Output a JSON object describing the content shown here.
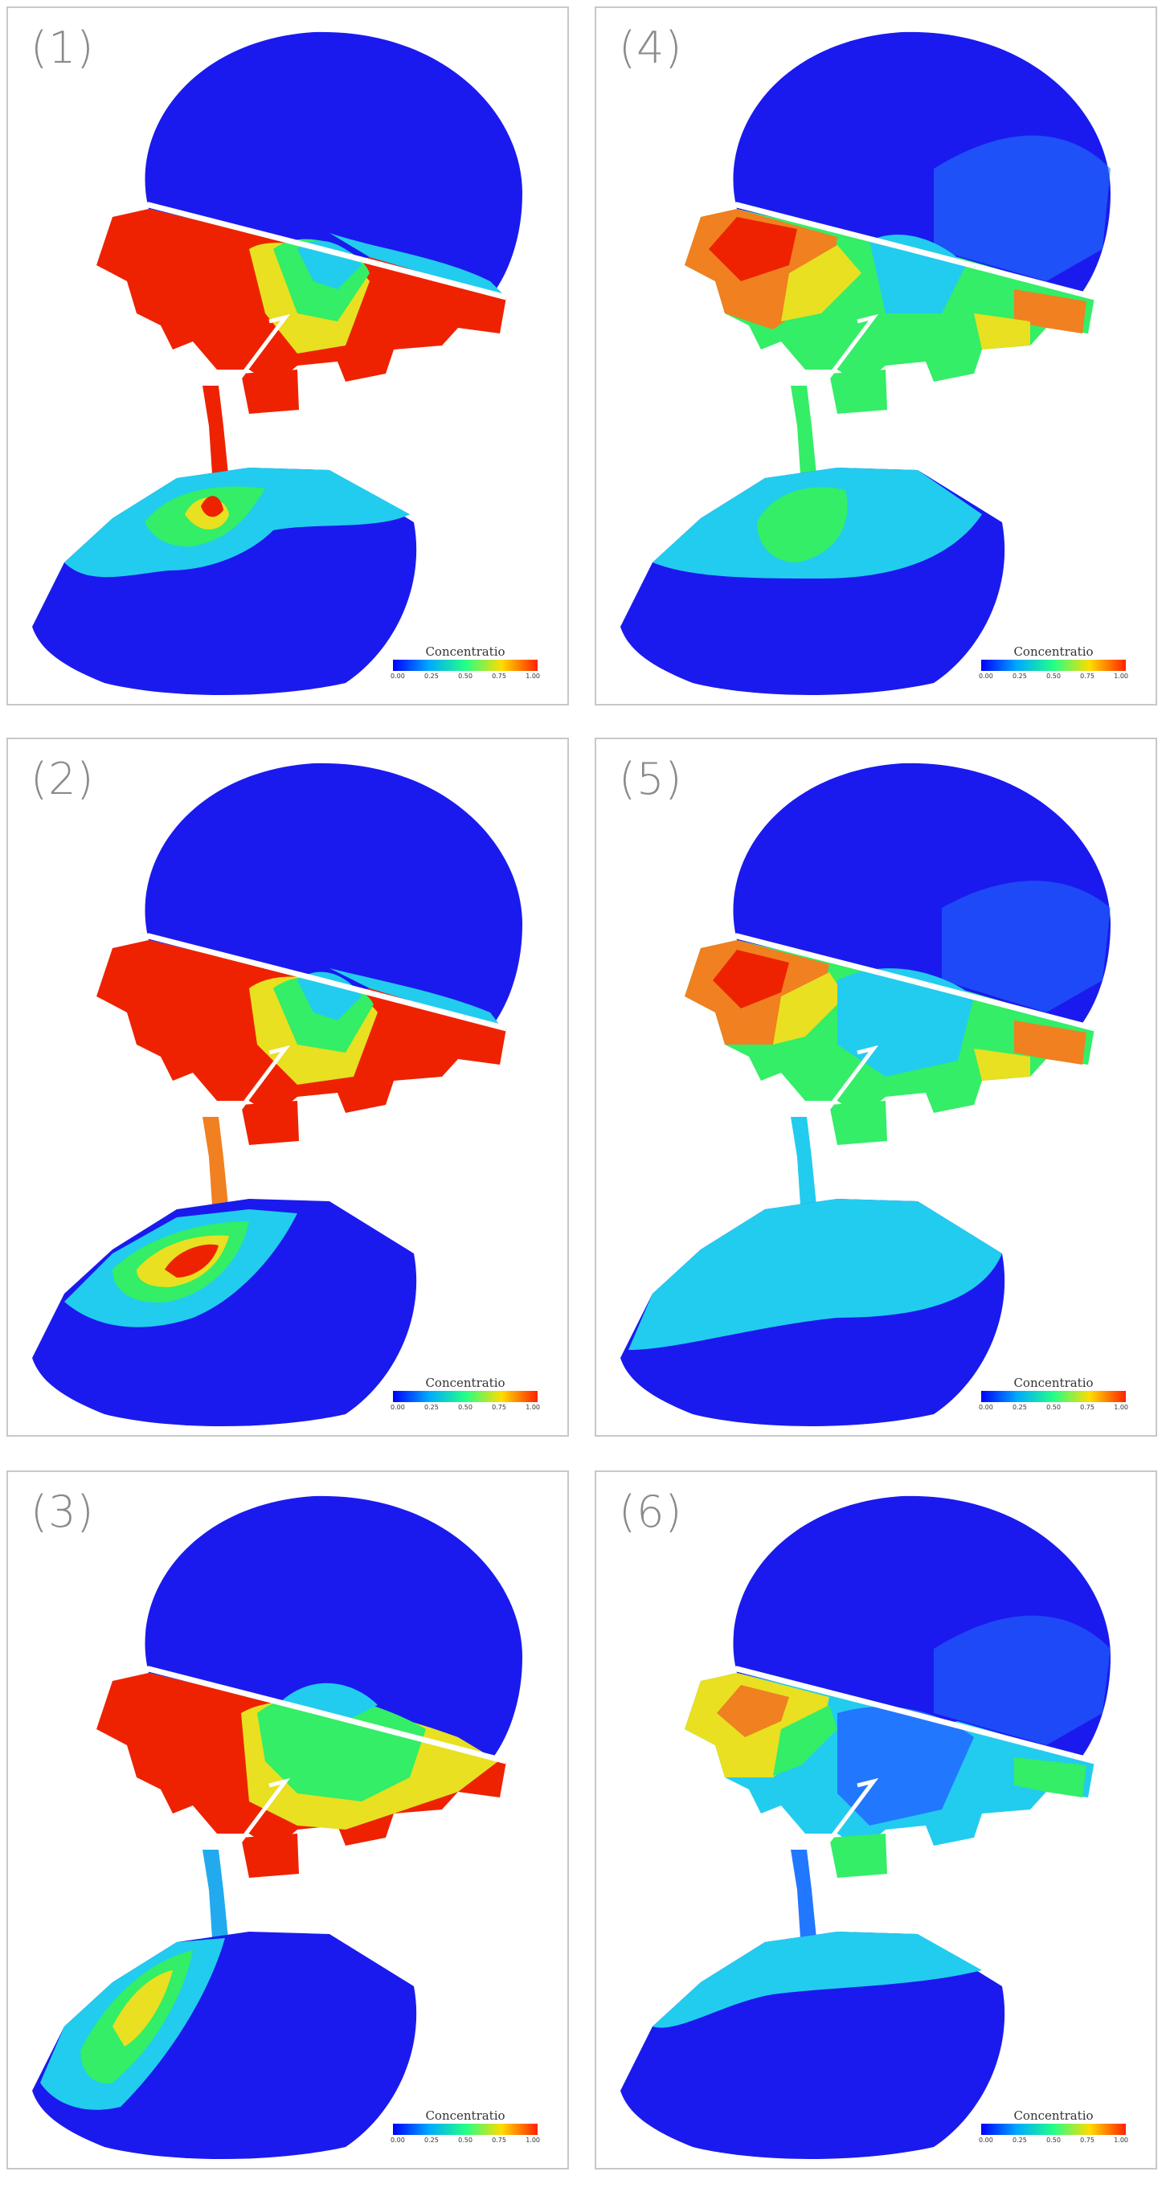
{
  "legend": {
    "title": "Concentratio",
    "ticks": [
      "0.00",
      "0.25",
      "0.50",
      "0.75",
      "1.00"
    ]
  },
  "panels": [
    {
      "label": "(1)"
    },
    {
      "label": "(2)"
    },
    {
      "label": "(3)"
    },
    {
      "label": "(4)"
    },
    {
      "label": "(5)"
    },
    {
      "label": "(6)"
    }
  ],
  "colors": {
    "blue": "#1a1aee",
    "cyan": "#22ccee",
    "green": "#33ee66",
    "yellow": "#e8e020",
    "orange": "#f08020",
    "red": "#ee2200"
  }
}
